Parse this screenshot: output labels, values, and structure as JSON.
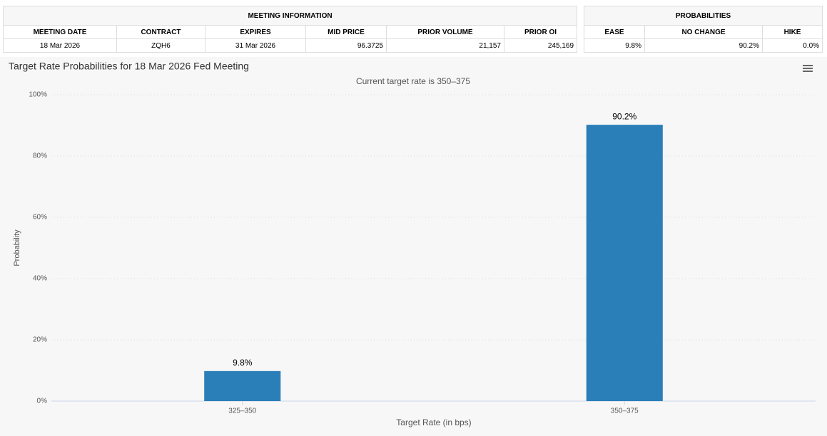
{
  "tables": {
    "meeting": {
      "title": "MEETING INFORMATION",
      "headers": [
        "MEETING DATE",
        "CONTRACT",
        "EXPIRES",
        "MID PRICE",
        "PRIOR VOLUME",
        "PRIOR OI"
      ],
      "row": [
        "18 Mar 2026",
        "ZQH6",
        "31 Mar 2026",
        "96.3725",
        "21,157",
        "245,169"
      ]
    },
    "probabilities": {
      "title": "PROBABILITIES",
      "headers": [
        "EASE",
        "NO CHANGE",
        "HIKE"
      ],
      "row": [
        "9.8%",
        "90.2%",
        "0.0%"
      ]
    }
  },
  "chart_data": {
    "type": "bar",
    "title": "Target Rate Probabilities for 18 Mar 2026 Fed Meeting",
    "subtitle": "Current target rate is 350–375",
    "x_label": "Target Rate (in bps)",
    "y_label": "Probability",
    "categories": [
      "325–350",
      "350–375"
    ],
    "values": [
      9.8,
      90.2
    ],
    "value_labels": [
      "9.8%",
      "90.2%"
    ],
    "color": "#2b7fb8",
    "ylim": [
      0,
      100
    ],
    "yticks": [
      {
        "value": 0,
        "label": "0%"
      },
      {
        "value": 20,
        "label": "20%"
      },
      {
        "value": 40,
        "label": "40%"
      },
      {
        "value": 60,
        "label": "60%"
      },
      {
        "value": 80,
        "label": "80%"
      },
      {
        "value": 100,
        "label": "100%"
      }
    ],
    "grid": true
  }
}
